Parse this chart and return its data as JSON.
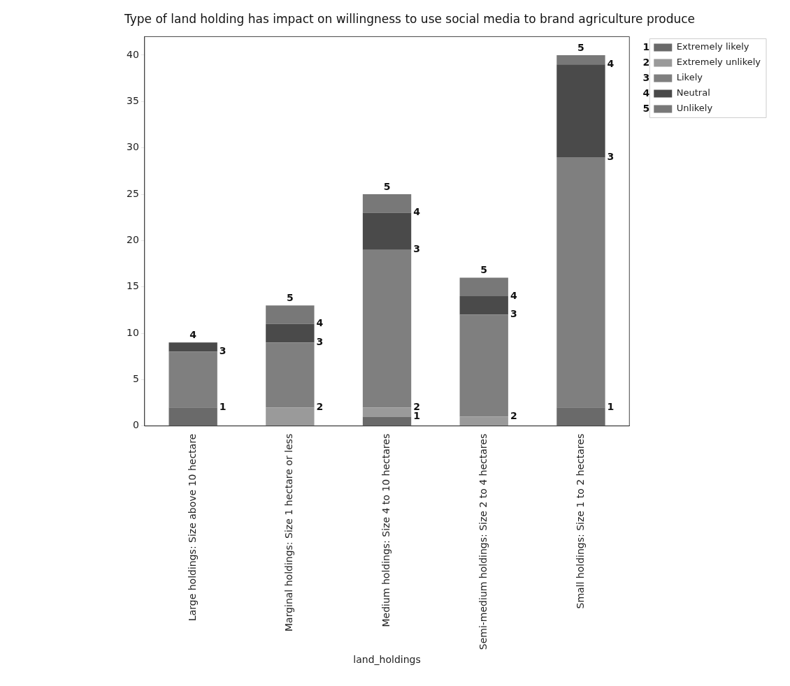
{
  "chart_data": {
    "type": "bar",
    "title": "Type of land holding has impact on willingness to use social media to brand agriculture produce",
    "xlabel": "land_holdings",
    "categories": [
      "Large holdings: Size above 10 hectare",
      "Marginal holdings: Size 1 hectare or less",
      "Medium holdings: Size 4 to 10 hectares",
      "Semi-medium holdings: Size 2 to 4 hectares",
      "Small holdings: Size 1 to 2 hectares"
    ],
    "series": [
      {
        "name": "Extremely likely",
        "color": "#6a6a6a",
        "values": [
          2,
          0,
          1,
          0,
          2
        ]
      },
      {
        "name": "Extremely unlikely",
        "color": "#9a9a9a",
        "values": [
          0,
          2,
          1,
          1,
          0
        ]
      },
      {
        "name": "Likely",
        "color": "#7f7f7f",
        "values": [
          6,
          7,
          17,
          11,
          27
        ]
      },
      {
        "name": "Neutral",
        "color": "#4a4a4a",
        "values": [
          1,
          2,
          4,
          2,
          10
        ]
      },
      {
        "name": "Unlikely",
        "color": "#787878",
        "values": [
          0,
          2,
          2,
          2,
          1
        ]
      }
    ],
    "stacked": true,
    "ylim": [
      0,
      42
    ],
    "yticks": [
      0,
      5,
      10,
      15,
      20,
      25,
      30,
      35,
      40
    ],
    "grid": false,
    "legend": "right",
    "annotations": [
      "1",
      "2",
      "3",
      "4",
      "5",
      {
        "text": "4",
        "x": "Large holdings: Size above 10 hectare",
        "y": 9
      },
      {
        "text": "3",
        "x": "Large holdings: Size above 10 hectare",
        "y": 8
      },
      {
        "text": "1",
        "x": "Large holdings: Size above 10 hectare",
        "y": 2
      },
      {
        "text": "5",
        "x": "Marginal holdings: Size 1 hectare or less",
        "y": 13
      },
      {
        "text": "4",
        "x": "Marginal holdings: Size 1 hectare or less",
        "y": 11
      },
      {
        "text": "3",
        "x": "Marginal holdings: Size 1 hectare or less",
        "y": 9
      },
      {
        "text": "2",
        "x": "Marginal holdings: Size 1 hectare or less",
        "y": 2
      },
      {
        "text": "5",
        "x": "Medium holdings: Size 4 to 10 hectares",
        "y": 25
      },
      {
        "text": "4",
        "x": "Medium holdings: Size 4 to 10 hectares",
        "y": 23
      },
      {
        "text": "3",
        "x": "Medium holdings: Size 4 to 10 hectares",
        "y": 19
      },
      {
        "text": "2",
        "x": "Medium holdings: Size 4 to 10 hectares",
        "y": 2
      },
      {
        "text": "1",
        "x": "Medium holdings: Size 4 to 10 hectares",
        "y": 1
      },
      {
        "text": "5",
        "x": "Semi-medium holdings: Size 2 to 4 hectares",
        "y": 16
      },
      {
        "text": "4",
        "x": "Semi-medium holdings: Size 2 to 4 hectares",
        "y": 14
      },
      {
        "text": "3",
        "x": "Semi-medium holdings: Size 2 to 4 hectares",
        "y": 12
      },
      {
        "text": "2",
        "x": "Semi-medium holdings: Size 2 to 4 hectares",
        "y": 1
      },
      {
        "text": "5",
        "x": "Small holdings: Size 1 to 2 hectares",
        "y": 40
      },
      {
        "text": "4",
        "x": "Small holdings: Size 1 to 2 hectares",
        "y": 39
      },
      {
        "text": "3",
        "x": "Small holdings: Size 1 to 2 hectares",
        "y": 29
      },
      {
        "text": "1",
        "x": "Small holdings: Size 1 to 2 hectares",
        "y": 2
      }
    ]
  }
}
